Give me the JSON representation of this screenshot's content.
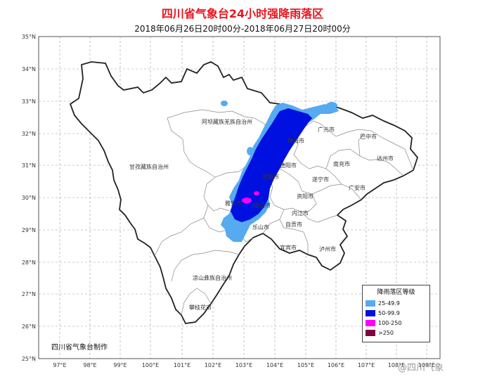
{
  "title": "四川省气象台24小时强降雨落区",
  "subtitle": "2018年06月26日20时00分-2018年06月27日20时00分",
  "lat_labels": [
    "35°N",
    "34°N",
    "33°N",
    "32°N",
    "31°N",
    "30°N",
    "29°N",
    "28°N",
    "27°N",
    "26°N",
    "25°N"
  ],
  "lon_labels": [
    "97°E",
    "98°E",
    "99°E",
    "100°E",
    "101°E",
    "102°E",
    "103°E",
    "104°E",
    "105°E",
    "106°E",
    "107°E",
    "108°E",
    "109°E"
  ],
  "prefectures": {
    "aba": "阿坝藏族羌族自治州",
    "ganzi": "甘孜藏族自治州",
    "liangshan": "凉山彝族自治州"
  },
  "cities": {
    "guangyuan": "广元市",
    "bazhong": "巴中市",
    "mianyang": "绵阳市",
    "nanchong": "南充市",
    "dazhou": "达州市",
    "deyang": "德阳市",
    "chengdu": "成都市",
    "suining": "遂宁市",
    "guangan": "广安市",
    "ziyang": "资阳市",
    "yaan": "雅安市",
    "meishan": "眉山市",
    "neijiang": "内江市",
    "leshan": "乐山市",
    "zigong": "自贡市",
    "yibin": "宜宾市",
    "luzhou": "泸州市",
    "panzhihua": "攀枝花市"
  },
  "legend": {
    "title": "降雨落区等级",
    "items": [
      {
        "label": "25-49.9",
        "color": "#55aaf0"
      },
      {
        "label": "50-99.9",
        "color": "#0010e0"
      },
      {
        "label": "100-250",
        "color": "#ff00ff"
      },
      {
        "label": ">250",
        "color": "#800040"
      }
    ]
  },
  "maker": "四川省气象台制作",
  "watermark": "@四川气象"
}
